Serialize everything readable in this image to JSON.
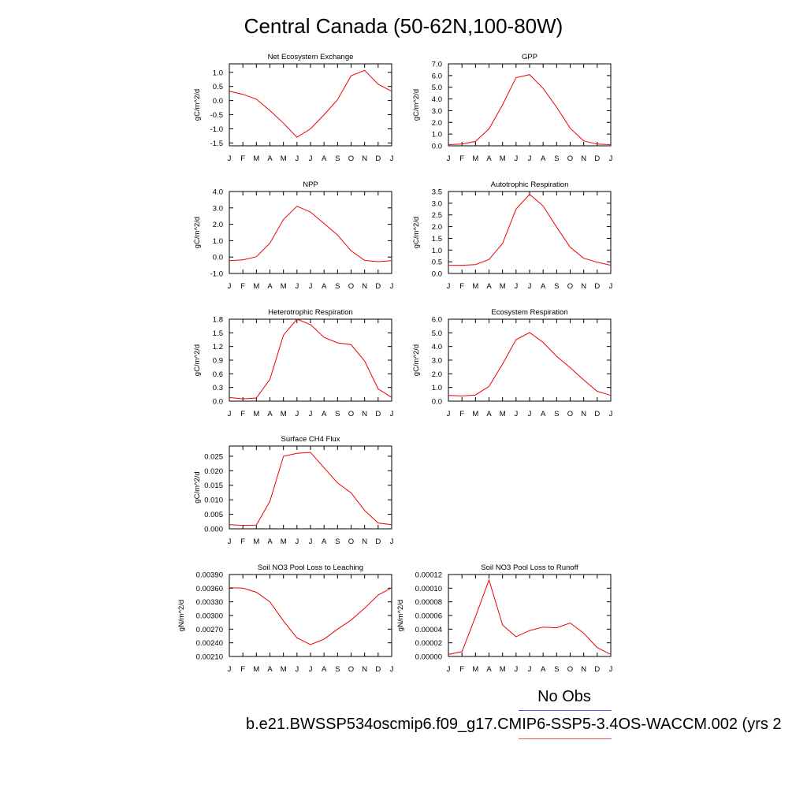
{
  "title": "Central Canada (50-62N,100-80W)",
  "legend": {
    "label": "No Obs",
    "line_colors": [
      "#5555ee",
      "#ee5555"
    ]
  },
  "case_label": "b.e21.BWSSP534oscmip6.f09_g17.CMIP6-SSP5-3.4OS-WACCM.002 (yrs 2",
  "series_color": "#ee0000",
  "chart_data": [
    {
      "type": "line",
      "title": "Net Ecosystem Exchange",
      "ylabel": "gC/m^2/d",
      "categories": [
        "J",
        "F",
        "M",
        "A",
        "M",
        "J",
        "J",
        "A",
        "S",
        "O",
        "N",
        "D",
        "J"
      ],
      "ylim": [
        -1.6,
        1.3
      ],
      "yticks": [
        "1.0",
        "0.5",
        "0.0",
        "-0.5",
        "-1.0",
        "-1.5"
      ],
      "ytick_values": [
        1.0,
        0.5,
        0.0,
        -0.5,
        -1.0,
        -1.5
      ],
      "values": [
        0.33,
        0.22,
        0.05,
        -0.35,
        -0.8,
        -1.3,
        -1.0,
        -0.5,
        0.03,
        0.88,
        1.07,
        0.58,
        0.33
      ]
    },
    {
      "type": "line",
      "title": "GPP",
      "ylabel": "gC/m^2/d",
      "categories": [
        "J",
        "F",
        "M",
        "A",
        "M",
        "J",
        "J",
        "A",
        "S",
        "O",
        "N",
        "D",
        "J"
      ],
      "ylim": [
        0.0,
        7.0
      ],
      "yticks": [
        "0.0",
        "1.0",
        "2.0",
        "3.0",
        "4.0",
        "5.0",
        "6.0",
        "7.0"
      ],
      "ytick_values": [
        0,
        1,
        2,
        3,
        4,
        5,
        6,
        7
      ],
      "values": [
        0.1,
        0.15,
        0.38,
        1.45,
        3.5,
        5.82,
        6.08,
        4.9,
        3.3,
        1.5,
        0.42,
        0.15,
        0.1
      ]
    },
    {
      "type": "line",
      "title": "NPP",
      "ylabel": "gC/m^2/d",
      "categories": [
        "J",
        "F",
        "M",
        "A",
        "M",
        "J",
        "J",
        "A",
        "S",
        "O",
        "N",
        "D",
        "J"
      ],
      "ylim": [
        -1.0,
        4.0
      ],
      "yticks": [
        "-1.0",
        "0.0",
        "1.0",
        "2.0",
        "3.0",
        "4.0"
      ],
      "ytick_values": [
        -1,
        0,
        1,
        2,
        3,
        4
      ],
      "values": [
        -0.22,
        -0.17,
        0.02,
        0.85,
        2.3,
        3.1,
        2.75,
        2.05,
        1.35,
        0.38,
        -0.2,
        -0.28,
        -0.22
      ]
    },
    {
      "type": "line",
      "title": "Autotrophic Respiration",
      "ylabel": "gC/m^2/d",
      "categories": [
        "J",
        "F",
        "M",
        "A",
        "M",
        "J",
        "J",
        "A",
        "S",
        "O",
        "N",
        "D",
        "J"
      ],
      "ylim": [
        0.0,
        3.5
      ],
      "yticks": [
        "0.0",
        "0.5",
        "1.0",
        "1.5",
        "2.0",
        "2.5",
        "3.0",
        "3.5"
      ],
      "ytick_values": [
        0,
        0.5,
        1,
        1.5,
        2,
        2.5,
        3,
        3.5
      ],
      "values": [
        0.35,
        0.35,
        0.38,
        0.6,
        1.28,
        2.75,
        3.38,
        2.88,
        1.98,
        1.12,
        0.65,
        0.48,
        0.35
      ]
    },
    {
      "type": "line",
      "title": "Heterotrophic Respiration",
      "ylabel": "gC/m^2/d",
      "categories": [
        "J",
        "F",
        "M",
        "A",
        "M",
        "J",
        "J",
        "A",
        "S",
        "O",
        "N",
        "D",
        "J"
      ],
      "ylim": [
        0.0,
        1.8
      ],
      "yticks": [
        "0.0",
        "0.3",
        "0.6",
        "0.9",
        "1.2",
        "1.5",
        "1.8"
      ],
      "ytick_values": [
        0,
        0.3,
        0.6,
        0.9,
        1.2,
        1.5,
        1.8
      ],
      "values": [
        0.08,
        0.05,
        0.07,
        0.48,
        1.45,
        1.8,
        1.68,
        1.4,
        1.28,
        1.24,
        0.88,
        0.27,
        0.08
      ]
    },
    {
      "type": "line",
      "title": "Ecosystem Respiration",
      "ylabel": "gC/m^2/d",
      "categories": [
        "J",
        "F",
        "M",
        "A",
        "M",
        "J",
        "J",
        "A",
        "S",
        "O",
        "N",
        "D",
        "J"
      ],
      "ylim": [
        0.0,
        6.0
      ],
      "yticks": [
        "0.0",
        "1.0",
        "2.0",
        "3.0",
        "4.0",
        "5.0",
        "6.0"
      ],
      "ytick_values": [
        0,
        1,
        2,
        3,
        4,
        5,
        6
      ],
      "values": [
        0.42,
        0.38,
        0.45,
        1.08,
        2.72,
        4.5,
        5.02,
        4.3,
        3.28,
        2.45,
        1.55,
        0.72,
        0.42
      ]
    },
    {
      "type": "line",
      "title": "Surface CH4 Flux",
      "ylabel": "gC/m^2/d",
      "categories": [
        "J",
        "F",
        "M",
        "A",
        "M",
        "J",
        "J",
        "A",
        "S",
        "O",
        "N",
        "D",
        "J"
      ],
      "ylim": [
        0.0,
        0.0285
      ],
      "yticks": [
        "0.000",
        "0.005",
        "0.010",
        "0.015",
        "0.020",
        "0.025"
      ],
      "ytick_values": [
        0,
        0.005,
        0.01,
        0.015,
        0.02,
        0.025
      ],
      "values": [
        0.0014,
        0.0012,
        0.0013,
        0.0095,
        0.025,
        0.026,
        0.0263,
        0.021,
        0.0158,
        0.0124,
        0.0063,
        0.002,
        0.0014
      ]
    },
    {
      "type": "line",
      "title": "Soil NO3 Pool Loss to Leaching",
      "ylabel": "gN/m^2/d",
      "categories": [
        "J",
        "F",
        "M",
        "A",
        "M",
        "J",
        "J",
        "A",
        "S",
        "O",
        "N",
        "D",
        "J"
      ],
      "ylim": [
        0.0021,
        0.0039
      ],
      "yticks": [
        "0.00210",
        "0.00240",
        "0.00270",
        "0.00300",
        "0.00330",
        "0.00360",
        "0.00390"
      ],
      "ytick_values": [
        0.0021,
        0.0024,
        0.0027,
        0.003,
        0.0033,
        0.0036,
        0.0039
      ],
      "values": [
        0.00361,
        0.0036,
        0.00351,
        0.0033,
        0.00288,
        0.00251,
        0.00236,
        0.00248,
        0.0027,
        0.0029,
        0.00316,
        0.00345,
        0.00361
      ]
    },
    {
      "type": "line",
      "title": "Soil NO3 Pool Loss to Runoff",
      "ylabel": "gN/m^2/d",
      "categories": [
        "J",
        "F",
        "M",
        "A",
        "M",
        "J",
        "J",
        "A",
        "S",
        "O",
        "N",
        "D",
        "J"
      ],
      "ylim": [
        0.0,
        0.00012
      ],
      "yticks": [
        "0.00000",
        "0.00002",
        "0.00004",
        "0.00006",
        "0.00008",
        "0.00010",
        "0.00012"
      ],
      "ytick_values": [
        0,
        2e-05,
        4e-05,
        6e-05,
        8e-05,
        0.0001,
        0.00012
      ],
      "values": [
        3e-06,
        7e-06,
        5.8e-05,
        0.000112,
        4.6e-05,
        2.9e-05,
        3.8e-05,
        4.3e-05,
        4.2e-05,
        4.9e-05,
        3.4e-05,
        1.3e-05,
        3e-06
      ]
    }
  ]
}
